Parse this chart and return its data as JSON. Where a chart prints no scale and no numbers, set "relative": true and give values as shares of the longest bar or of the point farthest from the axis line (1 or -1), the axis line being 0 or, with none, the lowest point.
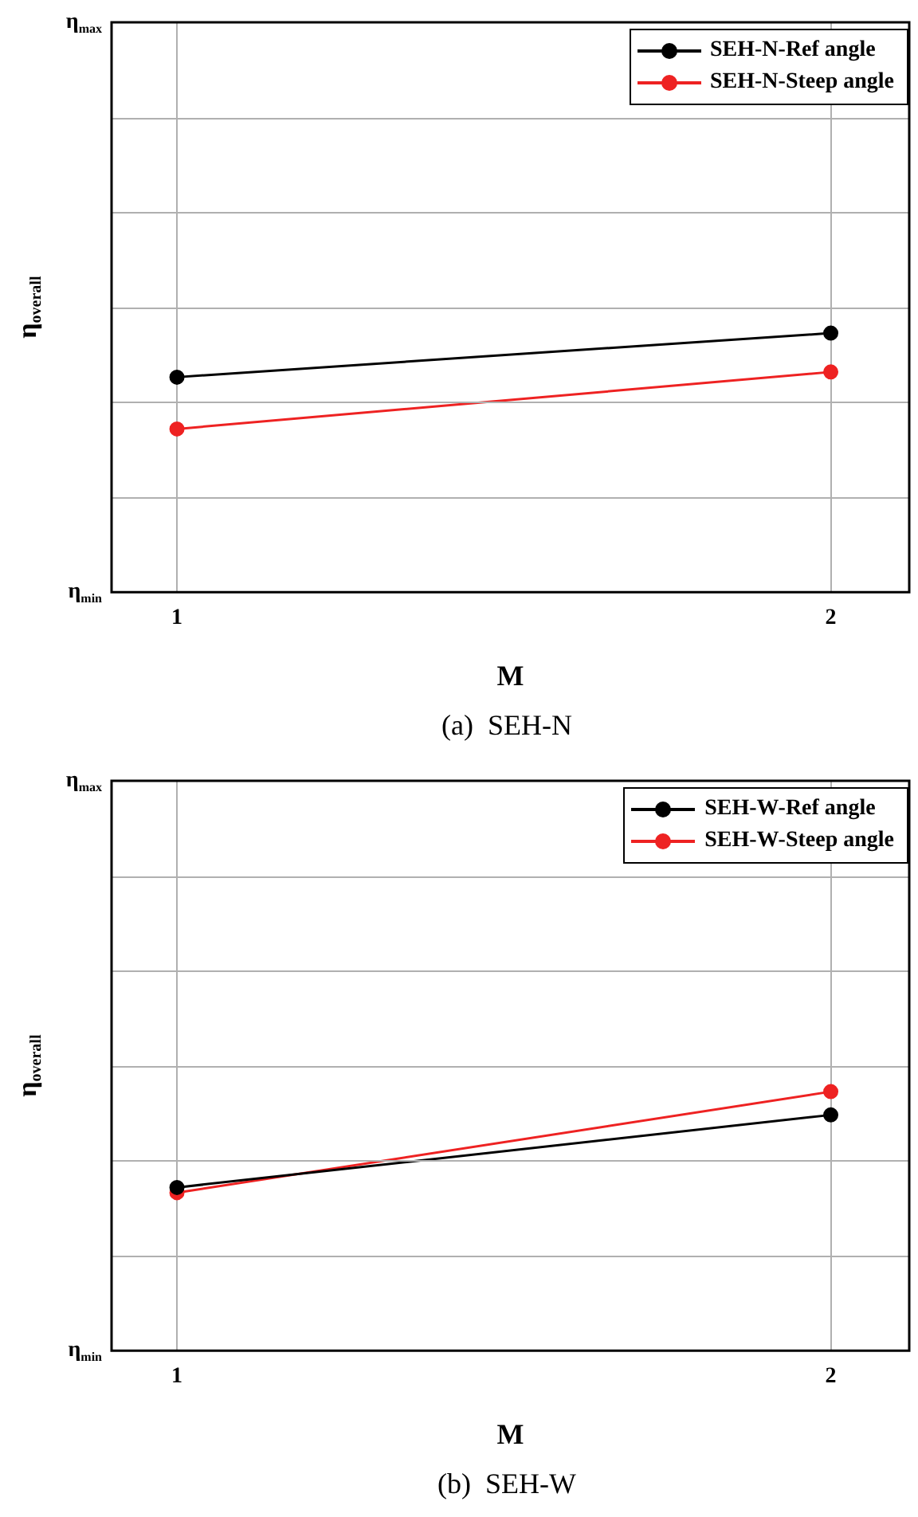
{
  "chart_data": [
    {
      "type": "line",
      "relative": true,
      "xlabel": "M",
      "ylabel": "η$_{overall}$",
      "annotations": [
        "η$_{max}$",
        "η$_{min}$",
        "(a)  SEH-N"
      ],
      "categories": [
        "1",
        "2"
      ],
      "grid": true,
      "legend": "top right",
      "marker": "circle",
      "line_style": "solid",
      "series": [
        {
          "name": "SEH-N-Ref angle",
          "color": "#000000",
          "values": [
            0.83,
            1.0
          ]
        },
        {
          "name": "SEH-N-Steep angle",
          "color": "#ee2222",
          "values": [
            0.63,
            0.85
          ]
        }
      ]
    },
    {
      "type": "line",
      "relative": true,
      "xlabel": "M",
      "ylabel": "η$_{overall}$",
      "annotations": [
        "η$_{max}$",
        "η$_{min}$",
        "(b)  SEH-W"
      ],
      "categories": [
        "1",
        "2"
      ],
      "grid": true,
      "legend": "top right",
      "marker": "circle",
      "line_style": "solid",
      "series": [
        {
          "name": "SEH-W-Ref angle",
          "color": "#000000",
          "values": [
            0.63,
            0.91
          ]
        },
        {
          "name": "SEH-W-Steep angle",
          "color": "#ee2222",
          "values": [
            0.61,
            1.0
          ]
        }
      ]
    }
  ]
}
